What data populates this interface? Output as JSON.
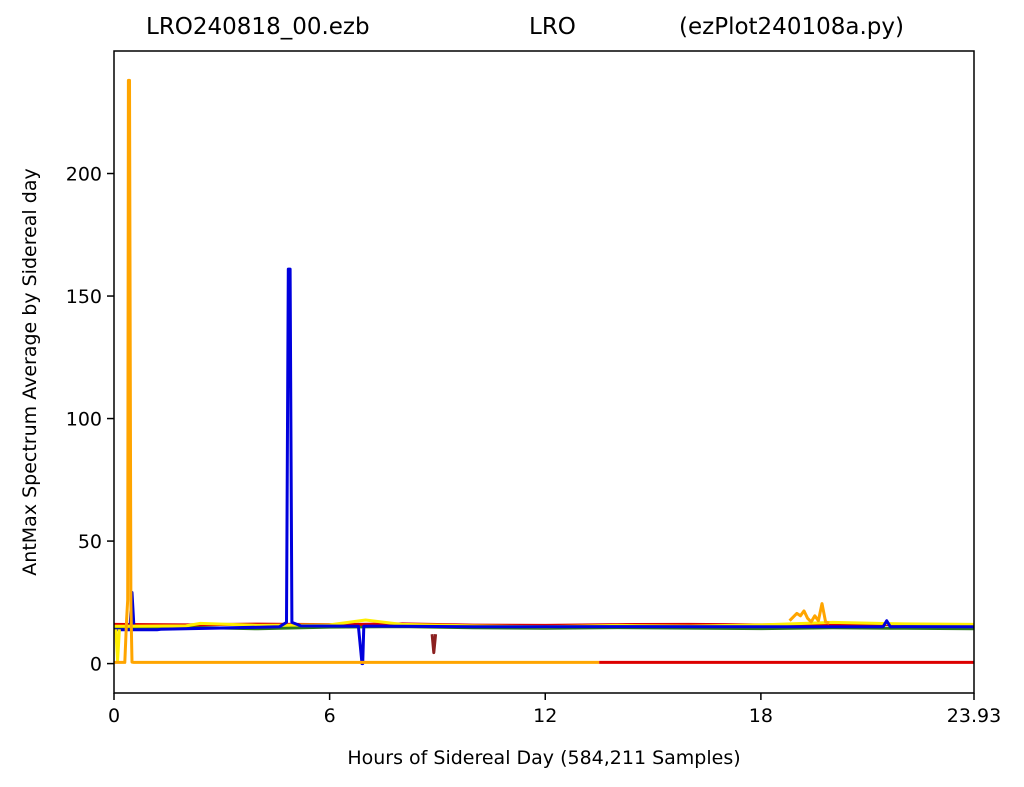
{
  "title": {
    "left": "LRO240818_00.ezb",
    "center": "LRO",
    "right": "(ezPlot240108a.py)"
  },
  "chart_data": {
    "type": "line",
    "xlabel": "Hours of Sidereal Day  (584,211 Samples)",
    "ylabel": "AntMax Spectrum Average by Sidereal day",
    "xlim": [
      0,
      23.93
    ],
    "ylim": [
      -12,
      250
    ],
    "x_ticks": [
      "0",
      "6",
      "12",
      "18",
      "23.93"
    ],
    "x_tick_values": [
      0,
      6,
      12,
      18,
      23.93
    ],
    "y_ticks": [
      "0",
      "50",
      "100",
      "150",
      "200"
    ],
    "y_tick_values": [
      0,
      50,
      100,
      150,
      200
    ],
    "grid": false,
    "series": [
      {
        "color": "#2a7a1a",
        "x": [
          0,
          2,
          4,
          6,
          8,
          10,
          12,
          14,
          16,
          18,
          20,
          22,
          23.93
        ],
        "y": [
          14.5,
          14.8,
          14.2,
          14.9,
          15.1,
          14.6,
          14.4,
          14.7,
          14.5,
          14.3,
          14.6,
          14.4,
          14.2
        ]
      },
      {
        "color": "#dd0000",
        "x": [
          0,
          2,
          4,
          6,
          8,
          10,
          12,
          14,
          16,
          18,
          20,
          22,
          23.93
        ],
        "y": [
          16.0,
          15.8,
          16.1,
          15.9,
          16.2,
          15.7,
          15.6,
          15.9,
          16.0,
          15.8,
          16.1,
          15.9,
          15.7
        ]
      },
      {
        "color": "#ffee00",
        "x": [
          0,
          2,
          2.4,
          4,
          6,
          7,
          8,
          10,
          12,
          14,
          16,
          18,
          20,
          22,
          23.93
        ],
        "y": [
          15.2,
          15.4,
          16.4,
          15.6,
          15.8,
          17.8,
          16.0,
          15.4,
          15.0,
          15.6,
          15.3,
          15.8,
          16.8,
          16.2,
          16.0
        ]
      },
      {
        "color": "#0000dd",
        "x": [
          0,
          1.2,
          1.3,
          4.6,
          4.8,
          4.85,
          4.9,
          4.95,
          5.2,
          6.8,
          6.9,
          6.92,
          6.95,
          7.1,
          10,
          14,
          18,
          21.4,
          21.5,
          21.6,
          22,
          23.93
        ],
        "y": [
          13.8,
          13.8,
          14.0,
          15.0,
          16.8,
          161,
          161,
          16.8,
          15.4,
          15.2,
          0,
          0,
          15.2,
          15.3,
          15.0,
          15.1,
          15.0,
          15.0,
          17.5,
          15.0,
          15.1,
          15.0
        ]
      },
      {
        "color": "#0000dd",
        "x": [
          0.45,
          0.5,
          0.55
        ],
        "y": [
          16.0,
          29.0,
          16.0
        ]
      },
      {
        "color": "#8b2020",
        "x": [
          8.85,
          8.9,
          8.95
        ],
        "y": [
          12.0,
          4.5,
          12.0
        ]
      },
      {
        "color": "#ffee00",
        "x": [
          0.05,
          0.1,
          0.15
        ],
        "y": [
          14.0,
          1.0,
          14.0
        ]
      },
      {
        "color": "#ffa500",
        "x": [
          0,
          0.2,
          0.3,
          0.35,
          0.38,
          0.4,
          0.43,
          0.47,
          0.5,
          0.55,
          13.5
        ],
        "y": [
          0.5,
          0.5,
          0.5,
          18.0,
          26.0,
          238,
          238,
          24.0,
          0.6,
          0.5,
          0.5
        ]
      },
      {
        "color": "#ffa500",
        "x": [
          18.8,
          19.0,
          19.1,
          19.2,
          19.3,
          19.4,
          19.5,
          19.6,
          19.7,
          19.8,
          19.9
        ],
        "y": [
          17.5,
          20.5,
          19.5,
          21.5,
          18.5,
          17.0,
          19.5,
          17.5,
          24.5,
          17.0,
          16.5
        ]
      },
      {
        "color": "#dd0000",
        "x": [
          13.5,
          23.93
        ],
        "y": [
          0.5,
          0.5
        ]
      }
    ]
  }
}
